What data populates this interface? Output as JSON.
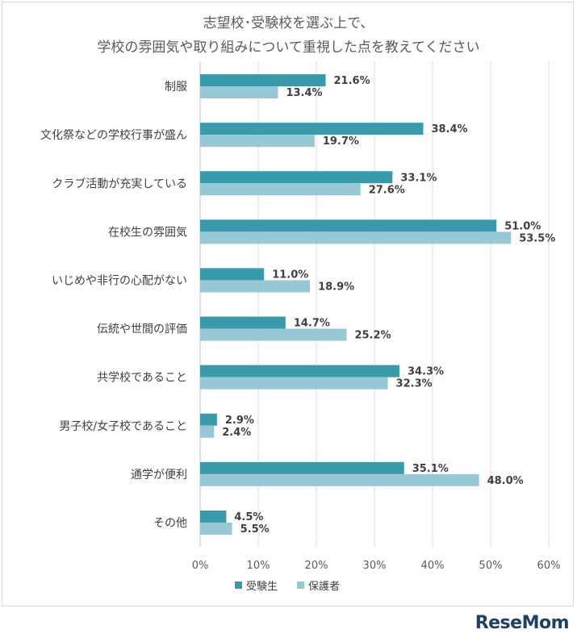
{
  "title_line1": "志望校･受験校を選ぶ上で、",
  "title_line2": "学校の雰囲気や取り組みについて重視した点を教えてください",
  "logo_text": "ReseMom",
  "colors": {
    "series1": "#3b9aaa",
    "series2": "#98c8d6",
    "grid": "#d9d9d9",
    "axis": "#bfbfbf"
  },
  "chart_data": {
    "type": "bar",
    "orientation": "horizontal",
    "categories": [
      "制服",
      "文化祭などの学校行事が盛ん",
      "クラブ活動が充実している",
      "在校生の雰囲気",
      "いじめや非行の心配がない",
      "伝統や世間の評価",
      "共学校であること",
      "男子校/女子校であること",
      "通学が便利",
      "その他"
    ],
    "series": [
      {
        "name": "受験生",
        "values": [
          21.6,
          38.4,
          33.1,
          51.0,
          11.0,
          14.7,
          34.3,
          2.9,
          35.1,
          4.5
        ]
      },
      {
        "name": "保護者",
        "values": [
          13.4,
          19.7,
          27.6,
          53.5,
          18.9,
          25.2,
          32.3,
          2.4,
          48.0,
          5.5
        ]
      }
    ],
    "xlim": [
      0,
      60
    ],
    "xticks": [
      "0%",
      "10%",
      "20%",
      "30%",
      "40%",
      "50%",
      "60%"
    ],
    "value_suffix": "%",
    "grid": true,
    "legend_position": "bottom"
  }
}
